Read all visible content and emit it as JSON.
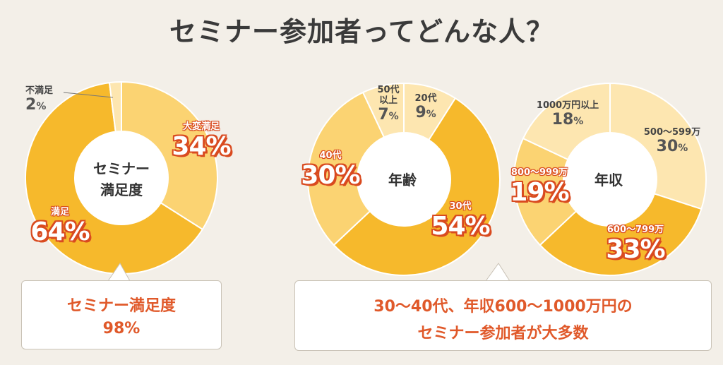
{
  "page_title": "セミナー参加者ってどんな人？",
  "colors": {
    "pale": "#fde6b0",
    "light": "#fbd372",
    "mid": "#f9c545",
    "deep": "#f6b92c",
    "accent_red": "#e0592a",
    "background": "#f3efe8"
  },
  "chart_data": [
    {
      "type": "pie",
      "center_label": [
        "セミナー",
        "満足度"
      ],
      "slices": [
        {
          "label": "大変満足",
          "value": 34
        },
        {
          "label": "満足",
          "value": 64
        },
        {
          "label": "不満足",
          "value": 2
        }
      ]
    },
    {
      "type": "pie",
      "center_label": [
        "年齢"
      ],
      "slices": [
        {
          "label": "20代",
          "value": 9
        },
        {
          "label": "30代",
          "value": 54
        },
        {
          "label": "40代",
          "value": 30
        },
        {
          "label": "50代以上",
          "value": 7
        }
      ]
    },
    {
      "type": "pie",
      "center_label": [
        "年収"
      ],
      "slices": [
        {
          "label": "500～599万",
          "value": 30
        },
        {
          "label": "600～799万",
          "value": 33
        },
        {
          "label": "800～999万",
          "value": 19
        },
        {
          "label": "1000万円以上",
          "value": 18
        }
      ]
    }
  ],
  "labels": {
    "satisfaction": {
      "very_satisfied": {
        "name": "大変満足",
        "pct": "34"
      },
      "satisfied": {
        "name": "満足",
        "pct": "64"
      },
      "unsatisfied": {
        "name": "不満足",
        "pct": "2"
      }
    },
    "age": {
      "a20": {
        "name": "20代",
        "pct": "9"
      },
      "a30": {
        "name": "30代",
        "pct": "54"
      },
      "a40": {
        "name": "40代",
        "pct": "30"
      },
      "a50_line1": "50代",
      "a50_line2": "以上",
      "a50_pct": "7"
    },
    "income": {
      "i500": {
        "name": "500～599万",
        "pct": "30"
      },
      "i600": {
        "name": "600～799万",
        "pct": "33"
      },
      "i800": {
        "name": "800～999万",
        "pct": "19"
      },
      "i1000": {
        "name": "1000万円以上",
        "pct": "18"
      }
    },
    "percent_sign": "%"
  },
  "callouts": {
    "left": {
      "line1": "セミナー満足度",
      "line2": "98%"
    },
    "right": {
      "line1": "30～40代、年収600～1000万円の",
      "line2": "セミナー参加者が大多数"
    }
  }
}
